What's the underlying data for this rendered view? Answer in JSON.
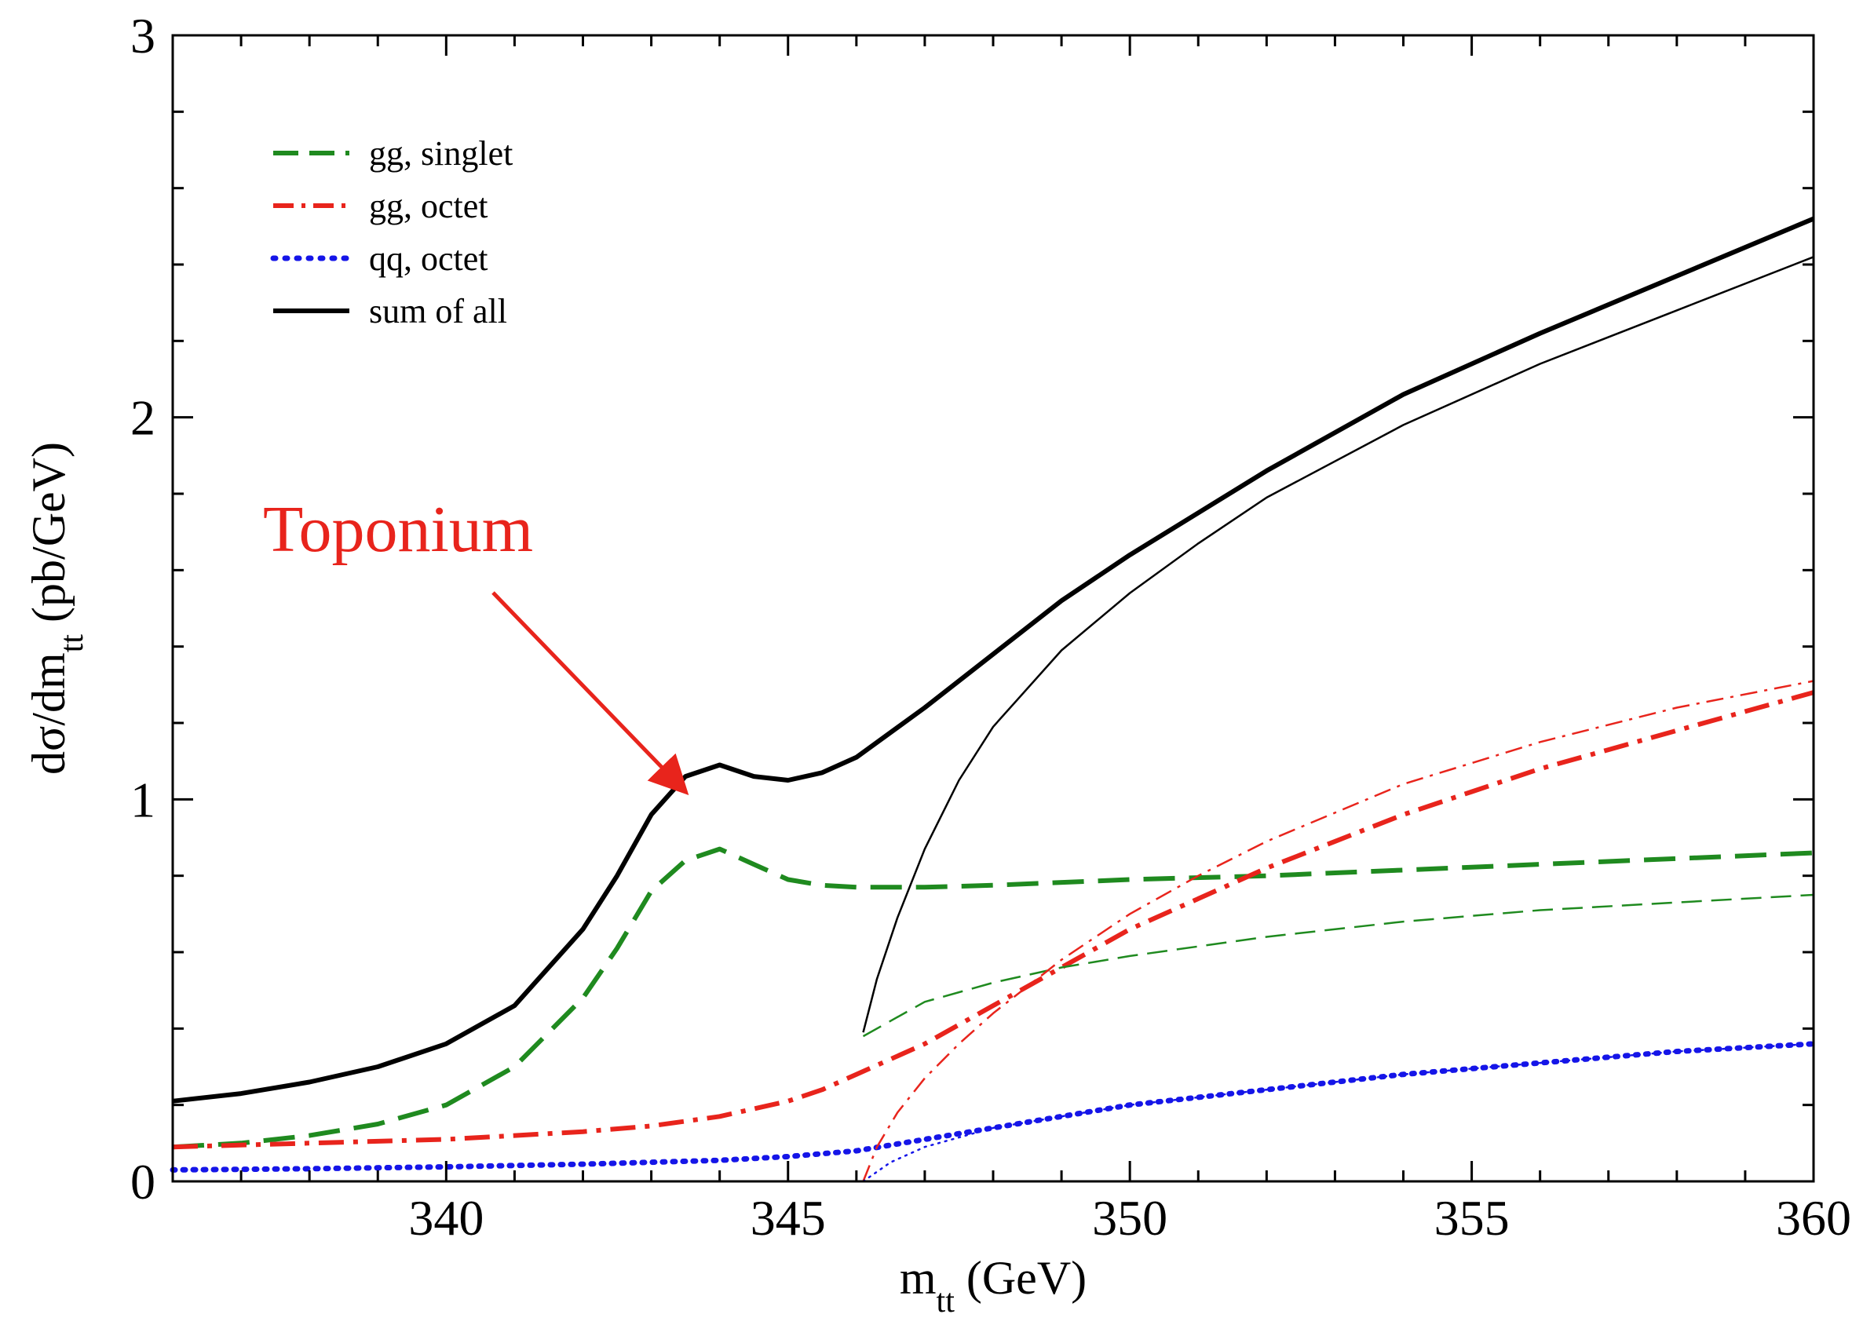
{
  "chart_data": {
    "type": "line",
    "xlabel": "m",
    "xlabel_sub": "tt",
    "xlabel_unit": " (GeV)",
    "ylabel": "dσ/dm",
    "ylabel_sub": "tt",
    "ylabel_unit": " (pb/GeV)",
    "xlim": [
      336,
      360
    ],
    "ylim": [
      0,
      3
    ],
    "x_ticks": [
      340,
      345,
      350,
      355,
      360
    ],
    "x_tick_labels": [
      "340",
      "345",
      "350",
      "355",
      "360"
    ],
    "y_ticks": [
      0,
      1,
      2,
      3
    ],
    "y_tick_labels": [
      "0",
      "1",
      "2",
      "3"
    ],
    "grid": false,
    "legend_position": "top-left",
    "annotation": {
      "text": "Toponium",
      "target": [
        343.6,
        1.08
      ],
      "color": "#e8241c"
    },
    "series": [
      {
        "name": "gg, singlet",
        "color": "#1f8a1f",
        "style": "dashed",
        "width": "thick",
        "in_legend": true,
        "x": [
          336,
          337,
          338,
          339,
          340,
          341,
          342,
          342.5,
          343,
          343.5,
          344,
          344.5,
          345,
          345.5,
          346,
          347,
          348,
          350,
          352,
          354,
          356,
          358,
          360
        ],
        "y": [
          0.09,
          0.1,
          0.12,
          0.15,
          0.2,
          0.3,
          0.48,
          0.61,
          0.76,
          0.84,
          0.87,
          0.83,
          0.79,
          0.775,
          0.77,
          0.77,
          0.775,
          0.79,
          0.8,
          0.815,
          0.83,
          0.845,
          0.86
        ]
      },
      {
        "name": "gg, octet",
        "color": "#e8241c",
        "style": "dashdot",
        "width": "thick",
        "in_legend": true,
        "x": [
          336,
          338,
          340,
          342,
          343,
          344,
          345,
          345.5,
          346,
          346.5,
          347,
          348,
          349,
          350,
          351,
          352,
          353,
          354,
          355,
          356,
          357,
          358,
          359,
          360
        ],
        "y": [
          0.09,
          0.1,
          0.11,
          0.13,
          0.145,
          0.17,
          0.21,
          0.24,
          0.28,
          0.32,
          0.36,
          0.46,
          0.56,
          0.66,
          0.74,
          0.82,
          0.89,
          0.96,
          1.02,
          1.08,
          1.13,
          1.18,
          1.23,
          1.28
        ]
      },
      {
        "name": "qq, octet",
        "color": "#1515e8",
        "style": "dotted",
        "width": "thick",
        "in_legend": true,
        "x": [
          336,
          338,
          340,
          342,
          344,
          345,
          346,
          347,
          348,
          349,
          350,
          352,
          354,
          356,
          358,
          360
        ],
        "y": [
          0.03,
          0.033,
          0.038,
          0.045,
          0.055,
          0.065,
          0.08,
          0.11,
          0.14,
          0.17,
          0.2,
          0.24,
          0.28,
          0.31,
          0.34,
          0.36
        ]
      },
      {
        "name": "sum of all",
        "color": "#000000",
        "style": "solid",
        "width": "thick",
        "in_legend": true,
        "x": [
          336,
          337,
          338,
          339,
          340,
          341,
          342,
          342.5,
          343,
          343.5,
          344,
          344.5,
          345,
          345.5,
          346,
          347,
          348,
          349,
          350,
          352,
          354,
          356,
          358,
          360
        ],
        "y": [
          0.21,
          0.23,
          0.26,
          0.3,
          0.36,
          0.46,
          0.66,
          0.8,
          0.96,
          1.06,
          1.09,
          1.06,
          1.05,
          1.07,
          1.11,
          1.24,
          1.38,
          1.52,
          1.64,
          1.86,
          2.06,
          2.22,
          2.37,
          2.52
        ]
      },
      {
        "name": "",
        "color": "#000000",
        "style": "solid",
        "width": "thin",
        "in_legend": false,
        "x": [
          346.1,
          346.3,
          346.6,
          347,
          347.5,
          348,
          349,
          350,
          351,
          352,
          354,
          356,
          358,
          360
        ],
        "y": [
          0.39,
          0.53,
          0.69,
          0.87,
          1.05,
          1.19,
          1.39,
          1.54,
          1.67,
          1.79,
          1.98,
          2.14,
          2.28,
          2.42
        ]
      },
      {
        "name": "",
        "color": "#1f8a1f",
        "style": "dashed",
        "width": "thin",
        "in_legend": false,
        "x": [
          346.1,
          347,
          348,
          349,
          350,
          352,
          354,
          356,
          358,
          360
        ],
        "y": [
          0.38,
          0.47,
          0.52,
          0.56,
          0.59,
          0.64,
          0.68,
          0.71,
          0.73,
          0.75
        ]
      },
      {
        "name": "",
        "color": "#e8241c",
        "style": "dashdot",
        "width": "thin",
        "in_legend": false,
        "x": [
          346.1,
          346.3,
          346.6,
          347,
          347.5,
          348,
          349,
          350,
          351,
          352,
          354,
          356,
          358,
          360
        ],
        "y": [
          0.0,
          0.09,
          0.18,
          0.27,
          0.36,
          0.44,
          0.58,
          0.7,
          0.8,
          0.89,
          1.04,
          1.15,
          1.24,
          1.31
        ]
      },
      {
        "name": "",
        "color": "#1515e8",
        "style": "dotted",
        "width": "thin",
        "in_legend": false,
        "x": [
          346.1,
          346.5,
          347,
          348,
          349,
          350,
          352,
          354,
          356,
          358,
          360
        ],
        "y": [
          0.0,
          0.05,
          0.09,
          0.14,
          0.17,
          0.2,
          0.24,
          0.28,
          0.31,
          0.34,
          0.36
        ]
      }
    ]
  }
}
